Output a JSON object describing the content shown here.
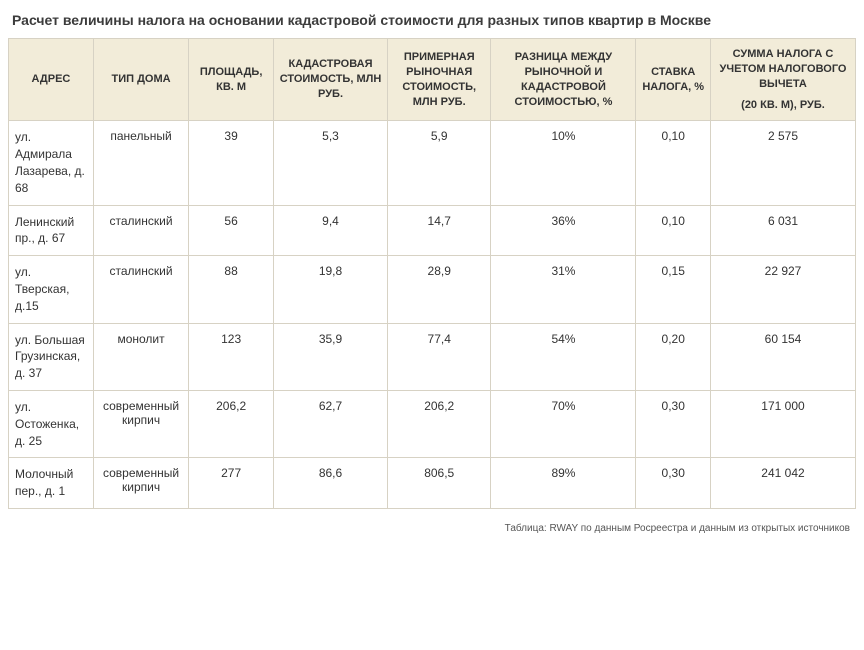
{
  "title": "Расчет величины налога на основании кадастровой стоимости для разных типов квартир в Москве",
  "table": {
    "columns": [
      "АДРЕС",
      "ТИП ДОМА",
      "ПЛОЩАДЬ, КВ. М",
      "КАДАСТРОВАЯ СТОИМОСТЬ, МЛН РУБ.",
      "ПРИМЕРНАЯ РЫНОЧНАЯ СТОИМОСТЬ, МЛН РУБ.",
      "РАЗНИЦА МЕЖДУ РЫНОЧНОЙ И КАДАСТРОВОЙ СТОИМОСТЬЮ, %",
      "СТАВКА НАЛОГА, %",
      "СУММА НАЛОГА С УЧЕТОМ НАЛОГОВОГО ВЫЧЕТА"
    ],
    "tax_sub": "(20 КВ. М), РУБ.",
    "rows": [
      {
        "addr": "ул. Адмирала Лазарева, д. 68",
        "type": "панельный",
        "area": "39",
        "cad": "5,3",
        "market": "5,9",
        "diff": "10%",
        "rate": "0,10",
        "tax": "2 575"
      },
      {
        "addr": "Ленинский пр., д. 67",
        "type": "сталинский",
        "area": "56",
        "cad": "9,4",
        "market": "14,7",
        "diff": "36%",
        "rate": "0,10",
        "tax": "6 031"
      },
      {
        "addr": "ул. Тверская, д.15",
        "type": "сталинский",
        "area": "88",
        "cad": "19,8",
        "market": "28,9",
        "diff": "31%",
        "rate": "0,15",
        "tax": "22 927"
      },
      {
        "addr": "ул. Большая Грузинская, д. 37",
        "type": "монолит",
        "area": "123",
        "cad": "35,9",
        "market": "77,4",
        "diff": "54%",
        "rate": "0,20",
        "tax": "60 154"
      },
      {
        "addr": "ул. Остоженка, д. 25",
        "type": "современный кирпич",
        "area": "206,2",
        "cad": "62,7",
        "market": "206,2",
        "diff": "70%",
        "rate": "0,30",
        "tax": "171 000"
      },
      {
        "addr": "Молочный пер., д. 1",
        "type": "современный кирпич",
        "area": "277",
        "cad": "86,6",
        "market": "806,5",
        "diff": "89%",
        "rate": "0,30",
        "tax": "241 042"
      }
    ]
  },
  "footer": "Таблица: RWAY по данным Росреестра и данным из открытых источников",
  "style": {
    "header_bg": "#f2ecd9",
    "border_color": "#d7d2c4",
    "title_color": "#3c3c3c",
    "body_font_size": 12,
    "header_font_size": 11,
    "title_font_size": 14
  }
}
